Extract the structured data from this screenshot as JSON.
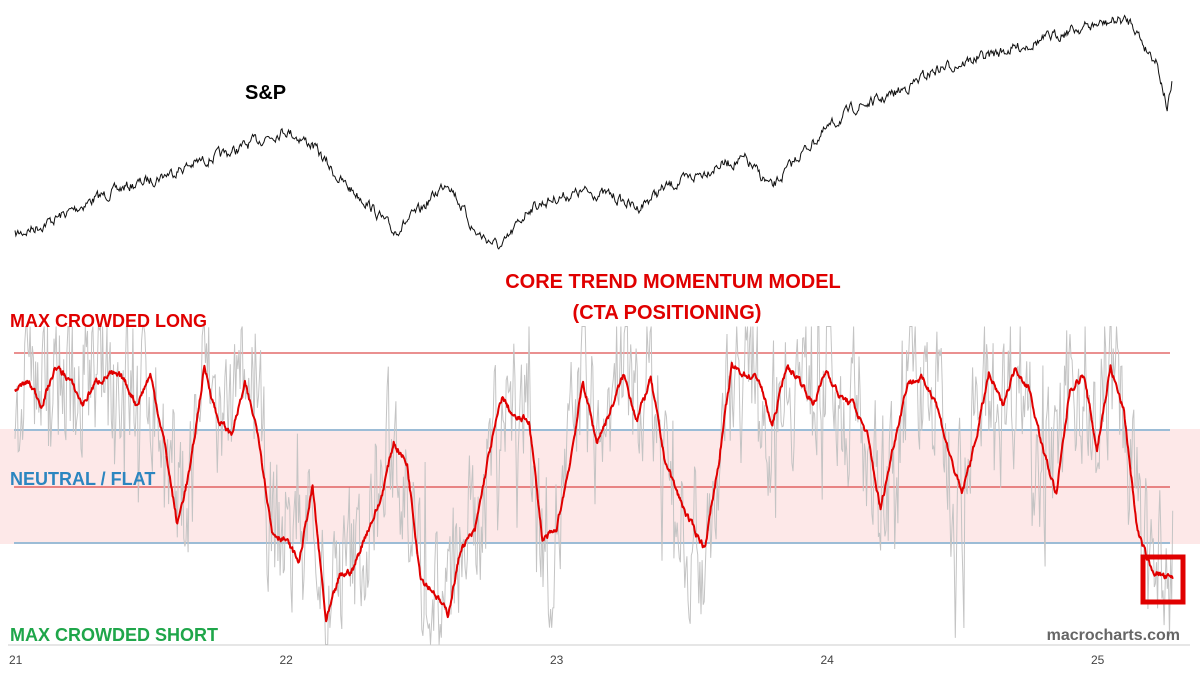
{
  "colors": {
    "price_line": "#111111",
    "momentum_line": "#e00000",
    "raw_signal_line": "#c4c4c4",
    "crowded_long_line": "#d42020",
    "neutral_band_fill": "#fde8e8",
    "neutral_band_edge": "#3a8fc4",
    "midline": "#d42020",
    "highlight_box": "#e00000",
    "crowded_long_text": "#e00000",
    "neutral_text": "#2c86c0",
    "crowded_short_text": "#1fa64a",
    "title_text": "#e00000",
    "watermark_text": "#666666"
  },
  "labels": {
    "price_series": "S&P",
    "model_title_line1": "CORE TREND MOMENTUM MODEL",
    "model_title_line2": "(CTA POSITIONING)",
    "max_crowded_long": "MAX CROWDED LONG",
    "neutral_flat": "NEUTRAL / FLAT",
    "max_crowded_short": "MAX CROWDED SHORT",
    "watermark": "macrocharts.com"
  },
  "chart_data": [
    {
      "type": "line",
      "panel": "top",
      "series": [
        {
          "name": "S&P",
          "x": [
            21.0,
            21.1,
            21.2,
            21.3,
            21.4,
            21.5,
            21.6,
            21.7,
            21.8,
            21.9,
            22.0,
            22.1,
            22.2,
            22.3,
            22.4,
            22.5,
            22.6,
            22.7,
            22.8,
            22.9,
            23.0,
            23.1,
            23.2,
            23.3,
            23.4,
            23.5,
            23.6,
            23.7,
            23.8,
            23.9,
            24.0,
            24.1,
            24.2,
            24.3,
            24.4,
            24.5,
            24.6,
            24.7,
            24.8,
            24.9,
            25.0,
            25.08,
            25.13,
            25.18,
            25.22,
            25.26,
            25.28
          ],
          "y": [
            235,
            225,
            212,
            198,
            188,
            180,
            170,
            160,
            152,
            140,
            130,
            145,
            180,
            202,
            232,
            210,
            180,
            232,
            248,
            208,
            198,
            192,
            195,
            208,
            188,
            178,
            165,
            160,
            188,
            155,
            130,
            108,
            100,
            87,
            70,
            63,
            55,
            48,
            40,
            30,
            25,
            20,
            22,
            48,
            60,
            108,
            82
          ]
        }
      ],
      "note_units": "top panel has no printed y-axis; y values are relative screen levels of the price trace"
    },
    {
      "type": "line",
      "panel": "bottom",
      "title": "CORE TREND MOMENTUM MODEL (CTA POSITIONING)",
      "xlabel": "",
      "ylabel": "",
      "x_tick_labels": [
        "21",
        "22",
        "23",
        "24",
        "25"
      ],
      "x_tick_values": [
        21,
        22,
        23,
        24,
        25
      ],
      "xlim": [
        21.0,
        25.32
      ],
      "ylim": [
        -1.0,
        1.0
      ],
      "levels": {
        "max_crowded_long": 0.8,
        "neutral_upper": 0.38,
        "neutral_mid": -0.08,
        "neutral_lower": -0.38
      },
      "series": [
        {
          "name": "Core Trend Momentum",
          "x": [
            21.0,
            21.05,
            21.1,
            21.15,
            21.2,
            21.25,
            21.3,
            21.35,
            21.4,
            21.45,
            21.5,
            21.55,
            21.6,
            21.65,
            21.7,
            21.75,
            21.8,
            21.85,
            21.9,
            21.95,
            22.0,
            22.05,
            22.1,
            22.15,
            22.2,
            22.25,
            22.3,
            22.35,
            22.4,
            22.45,
            22.5,
            22.55,
            22.6,
            22.65,
            22.7,
            22.75,
            22.8,
            22.85,
            22.9,
            22.95,
            23.0,
            23.05,
            23.1,
            23.15,
            23.2,
            23.25,
            23.3,
            23.35,
            23.4,
            23.45,
            23.5,
            23.55,
            23.6,
            23.65,
            23.7,
            23.75,
            23.8,
            23.85,
            23.9,
            23.95,
            24.0,
            24.05,
            24.1,
            24.15,
            24.2,
            24.25,
            24.3,
            24.35,
            24.4,
            24.45,
            24.5,
            24.55,
            24.6,
            24.65,
            24.7,
            24.75,
            24.8,
            24.85,
            24.9,
            24.95,
            25.0,
            25.05,
            25.1,
            25.15,
            25.2,
            25.25,
            25.28
          ],
          "y": [
            0.65,
            0.7,
            0.55,
            0.8,
            0.72,
            0.55,
            0.7,
            0.75,
            0.72,
            0.55,
            0.75,
            0.32,
            -0.25,
            0.15,
            0.8,
            0.45,
            0.35,
            0.68,
            0.35,
            -0.3,
            -0.35,
            -0.5,
            0.0,
            -0.9,
            -0.6,
            -0.55,
            -0.3,
            -0.1,
            0.3,
            0.15,
            -0.6,
            -0.7,
            -0.85,
            -0.4,
            -0.3,
            0.2,
            0.6,
            0.45,
            0.45,
            -0.35,
            -0.3,
            0.15,
            0.7,
            0.3,
            0.5,
            0.75,
            0.45,
            0.72,
            0.2,
            -0.05,
            -0.25,
            -0.4,
            0.15,
            0.8,
            0.75,
            0.72,
            0.4,
            0.8,
            0.72,
            0.55,
            0.78,
            0.6,
            0.55,
            0.35,
            -0.15,
            0.3,
            0.7,
            0.72,
            0.6,
            0.25,
            -0.05,
            0.3,
            0.75,
            0.55,
            0.8,
            0.65,
            0.25,
            -0.05,
            0.65,
            0.75,
            0.25,
            0.8,
            0.5,
            -0.3,
            -0.55,
            -0.6,
            -0.62
          ]
        }
      ],
      "raw_signal_note": "grey raw signal oscillates between about -1.0 and +1.0 around the red line",
      "highlight": "box around the latest readings near 25.25 below the neutral band"
    }
  ]
}
